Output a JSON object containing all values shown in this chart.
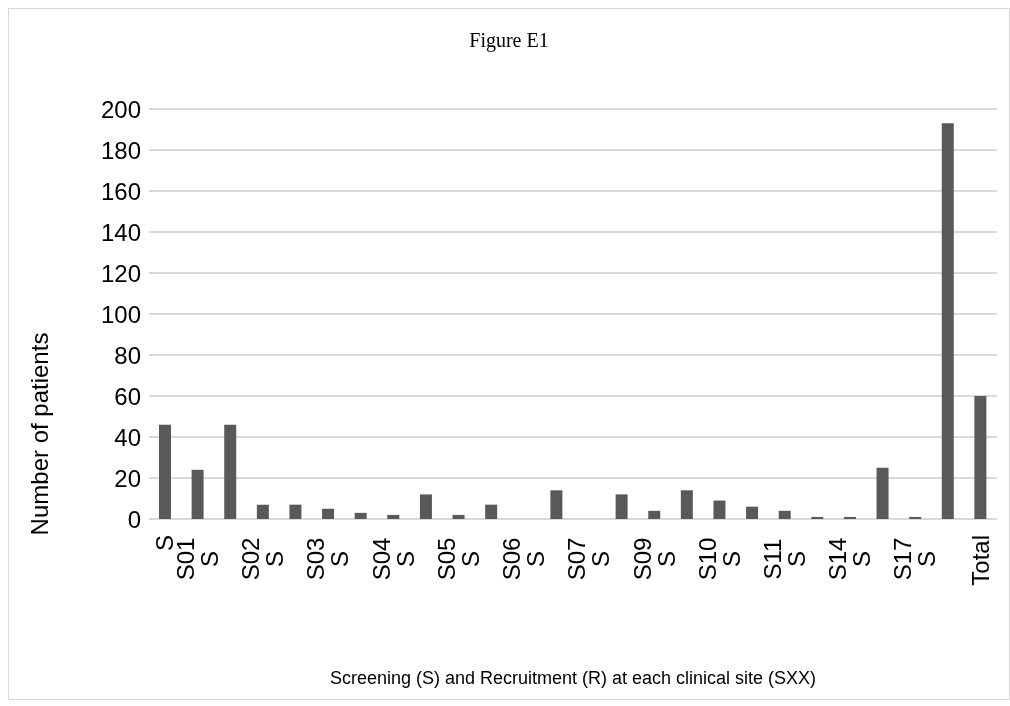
{
  "chart_data": {
    "type": "bar",
    "title": "Figure E1",
    "xlabel": "Screening (S) and Recruitment (R) at each clinical site (SXX)",
    "ylabel": "Number of patients",
    "categories": [
      "S",
      "S01 S",
      null,
      "S02 S",
      null,
      "S03 S",
      null,
      "S04 S",
      null,
      "S05 S",
      null,
      "S06 S",
      null,
      "S07 S",
      null,
      "S09 S",
      null,
      "S10 S",
      null,
      "S11 S",
      null,
      "S14 S",
      null,
      "S17 S",
      null,
      "Total"
    ],
    "values": [
      46,
      24,
      46,
      7,
      7,
      5,
      3,
      2,
      12,
      2,
      7,
      0,
      14,
      0,
      12,
      4,
      14,
      9,
      6,
      4,
      1,
      1,
      25,
      1,
      193,
      60
    ],
    "color": "#595959",
    "ylim": [
      0,
      200
    ],
    "yticks": [
      0,
      20,
      40,
      60,
      80,
      100,
      120,
      140,
      160,
      180,
      200
    ],
    "grid": "y"
  }
}
